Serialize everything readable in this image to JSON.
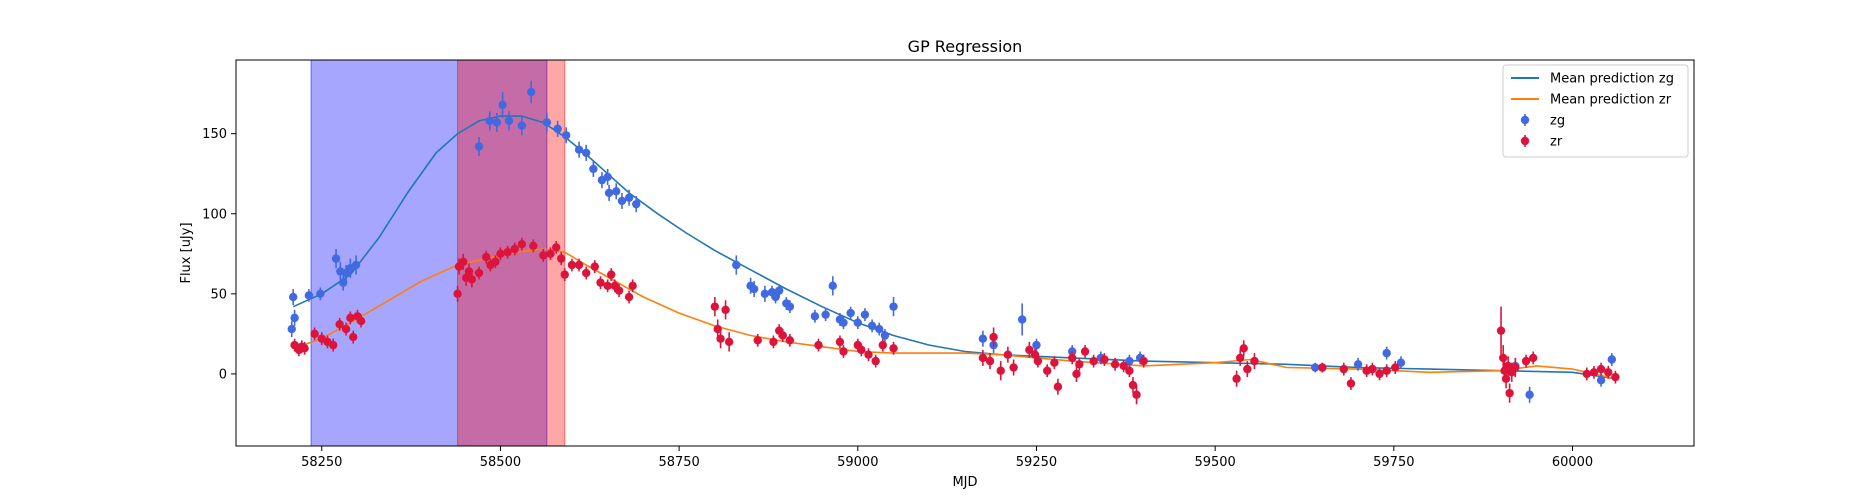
{
  "chart_data": {
    "type": "scatter",
    "title": "GP Regression",
    "xlabel": "MJD",
    "ylabel": "Flux [uJy]",
    "xlim": [
      58130,
      60170
    ],
    "ylim": [
      -45,
      196
    ],
    "xticks": [
      58250,
      58500,
      58750,
      59000,
      59250,
      59500,
      59750,
      60000
    ],
    "yticks": [
      0,
      50,
      100,
      150
    ],
    "legend_position": "top-right",
    "shaded_regions": [
      {
        "x0": 58235,
        "x1": 58565,
        "color": "#0000ff",
        "opacity": 0.35
      },
      {
        "x0": 58440,
        "x1": 58590,
        "color": "#ff0000",
        "opacity": 0.35
      }
    ],
    "lines": [
      {
        "name": "Mean prediction zg",
        "color": "#1f77b4",
        "x": [
          58210,
          58250,
          58290,
          58330,
          58370,
          58410,
          58440,
          58470,
          58500,
          58530,
          58560,
          58590,
          58620,
          58650,
          58680,
          58720,
          58760,
          58800,
          58850,
          58900,
          58950,
          59000,
          59050,
          59100,
          59150,
          59200,
          59250,
          59300,
          59400,
          59500,
          59600,
          59700,
          59800,
          59900,
          60000,
          60060
        ],
        "y": [
          42,
          50,
          62,
          85,
          113,
          138,
          150,
          158,
          161,
          161,
          157,
          148,
          137,
          125,
          113,
          100,
          88,
          77,
          65,
          53,
          42,
          32,
          24,
          18,
          14,
          12,
          11,
          10,
          8,
          7,
          6,
          4,
          3,
          2,
          1,
          -3
        ]
      },
      {
        "name": "Mean prediction zr",
        "color": "#ff7f0e",
        "x": [
          58210,
          58250,
          58290,
          58340,
          58390,
          58440,
          58480,
          58520,
          58560,
          58590,
          58620,
          58660,
          58700,
          58750,
          58800,
          58850,
          58900,
          58950,
          59000,
          59050,
          59100,
          59150,
          59200,
          59250,
          59300,
          59400,
          59500,
          59550,
          59600,
          59700,
          59800,
          59900,
          59950,
          60000,
          60060
        ],
        "y": [
          16,
          22,
          32,
          45,
          58,
          68,
          72,
          76,
          78,
          76,
          68,
          58,
          48,
          38,
          30,
          24,
          20,
          17,
          14,
          13,
          13,
          13,
          12,
          10,
          8,
          5,
          7,
          9,
          4,
          3,
          1,
          2,
          5,
          3,
          -3
        ]
      }
    ],
    "series": [
      {
        "name": "zg",
        "color": "#4169e1",
        "points": [
          [
            58210,
            48,
            5
          ],
          [
            58212,
            35,
            5
          ],
          [
            58208,
            28,
            5
          ],
          [
            58232,
            49,
            4
          ],
          [
            58248,
            50,
            4
          ],
          [
            58270,
            72,
            6
          ],
          [
            58276,
            64,
            6
          ],
          [
            58280,
            57,
            5
          ],
          [
            58284,
            63,
            5
          ],
          [
            58290,
            66,
            6
          ],
          [
            58298,
            68,
            6
          ],
          [
            58470,
            142,
            6
          ],
          [
            58485,
            158,
            6
          ],
          [
            58495,
            157,
            6
          ],
          [
            58503,
            168,
            8
          ],
          [
            58512,
            158,
            6
          ],
          [
            58530,
            155,
            6
          ],
          [
            58543,
            176,
            7
          ],
          [
            58565,
            157,
            6
          ],
          [
            58580,
            153,
            5
          ],
          [
            58592,
            149,
            5
          ],
          [
            58610,
            140,
            5
          ],
          [
            58620,
            138,
            5
          ],
          [
            58630,
            128,
            5
          ],
          [
            58642,
            121,
            5
          ],
          [
            58650,
            123,
            5
          ],
          [
            58652,
            113,
            5
          ],
          [
            58662,
            114,
            5
          ],
          [
            58670,
            108,
            5
          ],
          [
            58680,
            110,
            5
          ],
          [
            58690,
            106,
            5
          ],
          [
            58830,
            68,
            6
          ],
          [
            58850,
            55,
            5
          ],
          [
            58855,
            53,
            5
          ],
          [
            58870,
            50,
            5
          ],
          [
            58880,
            51,
            4
          ],
          [
            58885,
            48,
            4
          ],
          [
            58890,
            52,
            4
          ],
          [
            58900,
            44,
            4
          ],
          [
            58905,
            42,
            4
          ],
          [
            58940,
            36,
            4
          ],
          [
            58955,
            37,
            4
          ],
          [
            58965,
            55,
            6
          ],
          [
            58975,
            34,
            4
          ],
          [
            58980,
            32,
            4
          ],
          [
            58990,
            38,
            4
          ],
          [
            59000,
            32,
            4
          ],
          [
            59010,
            37,
            4
          ],
          [
            59020,
            30,
            4
          ],
          [
            59030,
            28,
            4
          ],
          [
            59038,
            24,
            4
          ],
          [
            59050,
            42,
            6
          ],
          [
            59175,
            22,
            5
          ],
          [
            59190,
            18,
            5
          ],
          [
            59230,
            34,
            10
          ],
          [
            59250,
            18,
            4
          ],
          [
            59300,
            14,
            4
          ],
          [
            59340,
            10,
            4
          ],
          [
            59380,
            8,
            4
          ],
          [
            59395,
            10,
            4
          ],
          [
            59640,
            4,
            3
          ],
          [
            59650,
            4,
            3
          ],
          [
            59700,
            6,
            4
          ],
          [
            59740,
            13,
            4
          ],
          [
            59760,
            7,
            4
          ],
          [
            59920,
            5,
            5
          ],
          [
            59940,
            -13,
            5
          ],
          [
            60040,
            -4,
            4
          ],
          [
            60055,
            9,
            4
          ]
        ]
      },
      {
        "name": "zr",
        "color": "#dc143c",
        "points": [
          [
            58212,
            18,
            4
          ],
          [
            58218,
            15,
            4
          ],
          [
            58222,
            17,
            4
          ],
          [
            58226,
            16,
            4
          ],
          [
            58240,
            25,
            4
          ],
          [
            58250,
            22,
            4
          ],
          [
            58258,
            20,
            4
          ],
          [
            58266,
            18,
            4
          ],
          [
            58275,
            31,
            4
          ],
          [
            58284,
            28,
            4
          ],
          [
            58290,
            35,
            4
          ],
          [
            58294,
            23,
            4
          ],
          [
            58300,
            36,
            4
          ],
          [
            58305,
            33,
            4
          ],
          [
            58440,
            50,
            5
          ],
          [
            58442,
            67,
            5
          ],
          [
            58448,
            70,
            5
          ],
          [
            58452,
            60,
            5
          ],
          [
            58456,
            64,
            5
          ],
          [
            58460,
            59,
            5
          ],
          [
            58470,
            63,
            4
          ],
          [
            58480,
            73,
            4
          ],
          [
            58486,
            68,
            4
          ],
          [
            58493,
            70,
            4
          ],
          [
            58500,
            75,
            4
          ],
          [
            58510,
            76,
            4
          ],
          [
            58520,
            78,
            4
          ],
          [
            58530,
            81,
            4
          ],
          [
            58546,
            80,
            4
          ],
          [
            58560,
            74,
            4
          ],
          [
            58570,
            75,
            4
          ],
          [
            58578,
            79,
            4
          ],
          [
            58585,
            72,
            4
          ],
          [
            58590,
            62,
            4
          ],
          [
            58600,
            68,
            4
          ],
          [
            58610,
            68,
            4
          ],
          [
            58620,
            63,
            4
          ],
          [
            58632,
            67,
            4
          ],
          [
            58640,
            57,
            4
          ],
          [
            58650,
            55,
            4
          ],
          [
            58655,
            62,
            4
          ],
          [
            58660,
            55,
            4
          ],
          [
            58666,
            52,
            4
          ],
          [
            58680,
            48,
            4
          ],
          [
            58685,
            55,
            4
          ],
          [
            58800,
            42,
            6
          ],
          [
            58804,
            28,
            6
          ],
          [
            58808,
            22,
            6
          ],
          [
            58815,
            40,
            6
          ],
          [
            58820,
            20,
            6
          ],
          [
            58860,
            21,
            4
          ],
          [
            58882,
            20,
            4
          ],
          [
            58890,
            27,
            4
          ],
          [
            58895,
            24,
            4
          ],
          [
            58905,
            21,
            4
          ],
          [
            58945,
            18,
            4
          ],
          [
            58975,
            20,
            4
          ],
          [
            58980,
            14,
            4
          ],
          [
            59000,
            18,
            4
          ],
          [
            59005,
            15,
            4
          ],
          [
            59015,
            12,
            4
          ],
          [
            59025,
            8,
            4
          ],
          [
            59035,
            18,
            4
          ],
          [
            59050,
            16,
            4
          ],
          [
            59175,
            10,
            5
          ],
          [
            59185,
            8,
            5
          ],
          [
            59190,
            23,
            6
          ],
          [
            59200,
            2,
            6
          ],
          [
            59210,
            12,
            5
          ],
          [
            59218,
            4,
            5
          ],
          [
            59240,
            15,
            5
          ],
          [
            59248,
            12,
            4
          ],
          [
            59252,
            8,
            4
          ],
          [
            59265,
            2,
            4
          ],
          [
            59275,
            7,
            4
          ],
          [
            59280,
            -8,
            5
          ],
          [
            59300,
            10,
            4
          ],
          [
            59306,
            0,
            5
          ],
          [
            59310,
            6,
            4
          ],
          [
            59318,
            14,
            4
          ],
          [
            59330,
            8,
            4
          ],
          [
            59345,
            9,
            4
          ],
          [
            59360,
            6,
            4
          ],
          [
            59372,
            5,
            4
          ],
          [
            59380,
            2,
            4
          ],
          [
            59385,
            -7,
            5
          ],
          [
            59390,
            -13,
            6
          ],
          [
            59400,
            8,
            4
          ],
          [
            59530,
            -3,
            5
          ],
          [
            59535,
            10,
            5
          ],
          [
            59540,
            16,
            5
          ],
          [
            59545,
            3,
            5
          ],
          [
            59555,
            8,
            5
          ],
          [
            59650,
            4,
            3
          ],
          [
            59680,
            3,
            4
          ],
          [
            59690,
            -6,
            4
          ],
          [
            59712,
            2,
            4
          ],
          [
            59720,
            3,
            4
          ],
          [
            59730,
            0,
            4
          ],
          [
            59740,
            2,
            4
          ],
          [
            59752,
            4,
            4
          ],
          [
            59900,
            27,
            15
          ],
          [
            59903,
            10,
            8
          ],
          [
            59905,
            2,
            6
          ],
          [
            59907,
            -3,
            6
          ],
          [
            59910,
            5,
            6
          ],
          [
            59912,
            -12,
            6
          ],
          [
            59915,
            1,
            6
          ],
          [
            59920,
            4,
            6
          ],
          [
            59935,
            8,
            4
          ],
          [
            59945,
            10,
            4
          ],
          [
            60020,
            0,
            4
          ],
          [
            60030,
            1,
            4
          ],
          [
            60040,
            3,
            4
          ],
          [
            60050,
            1,
            4
          ],
          [
            60060,
            -2,
            4
          ]
        ]
      }
    ]
  }
}
